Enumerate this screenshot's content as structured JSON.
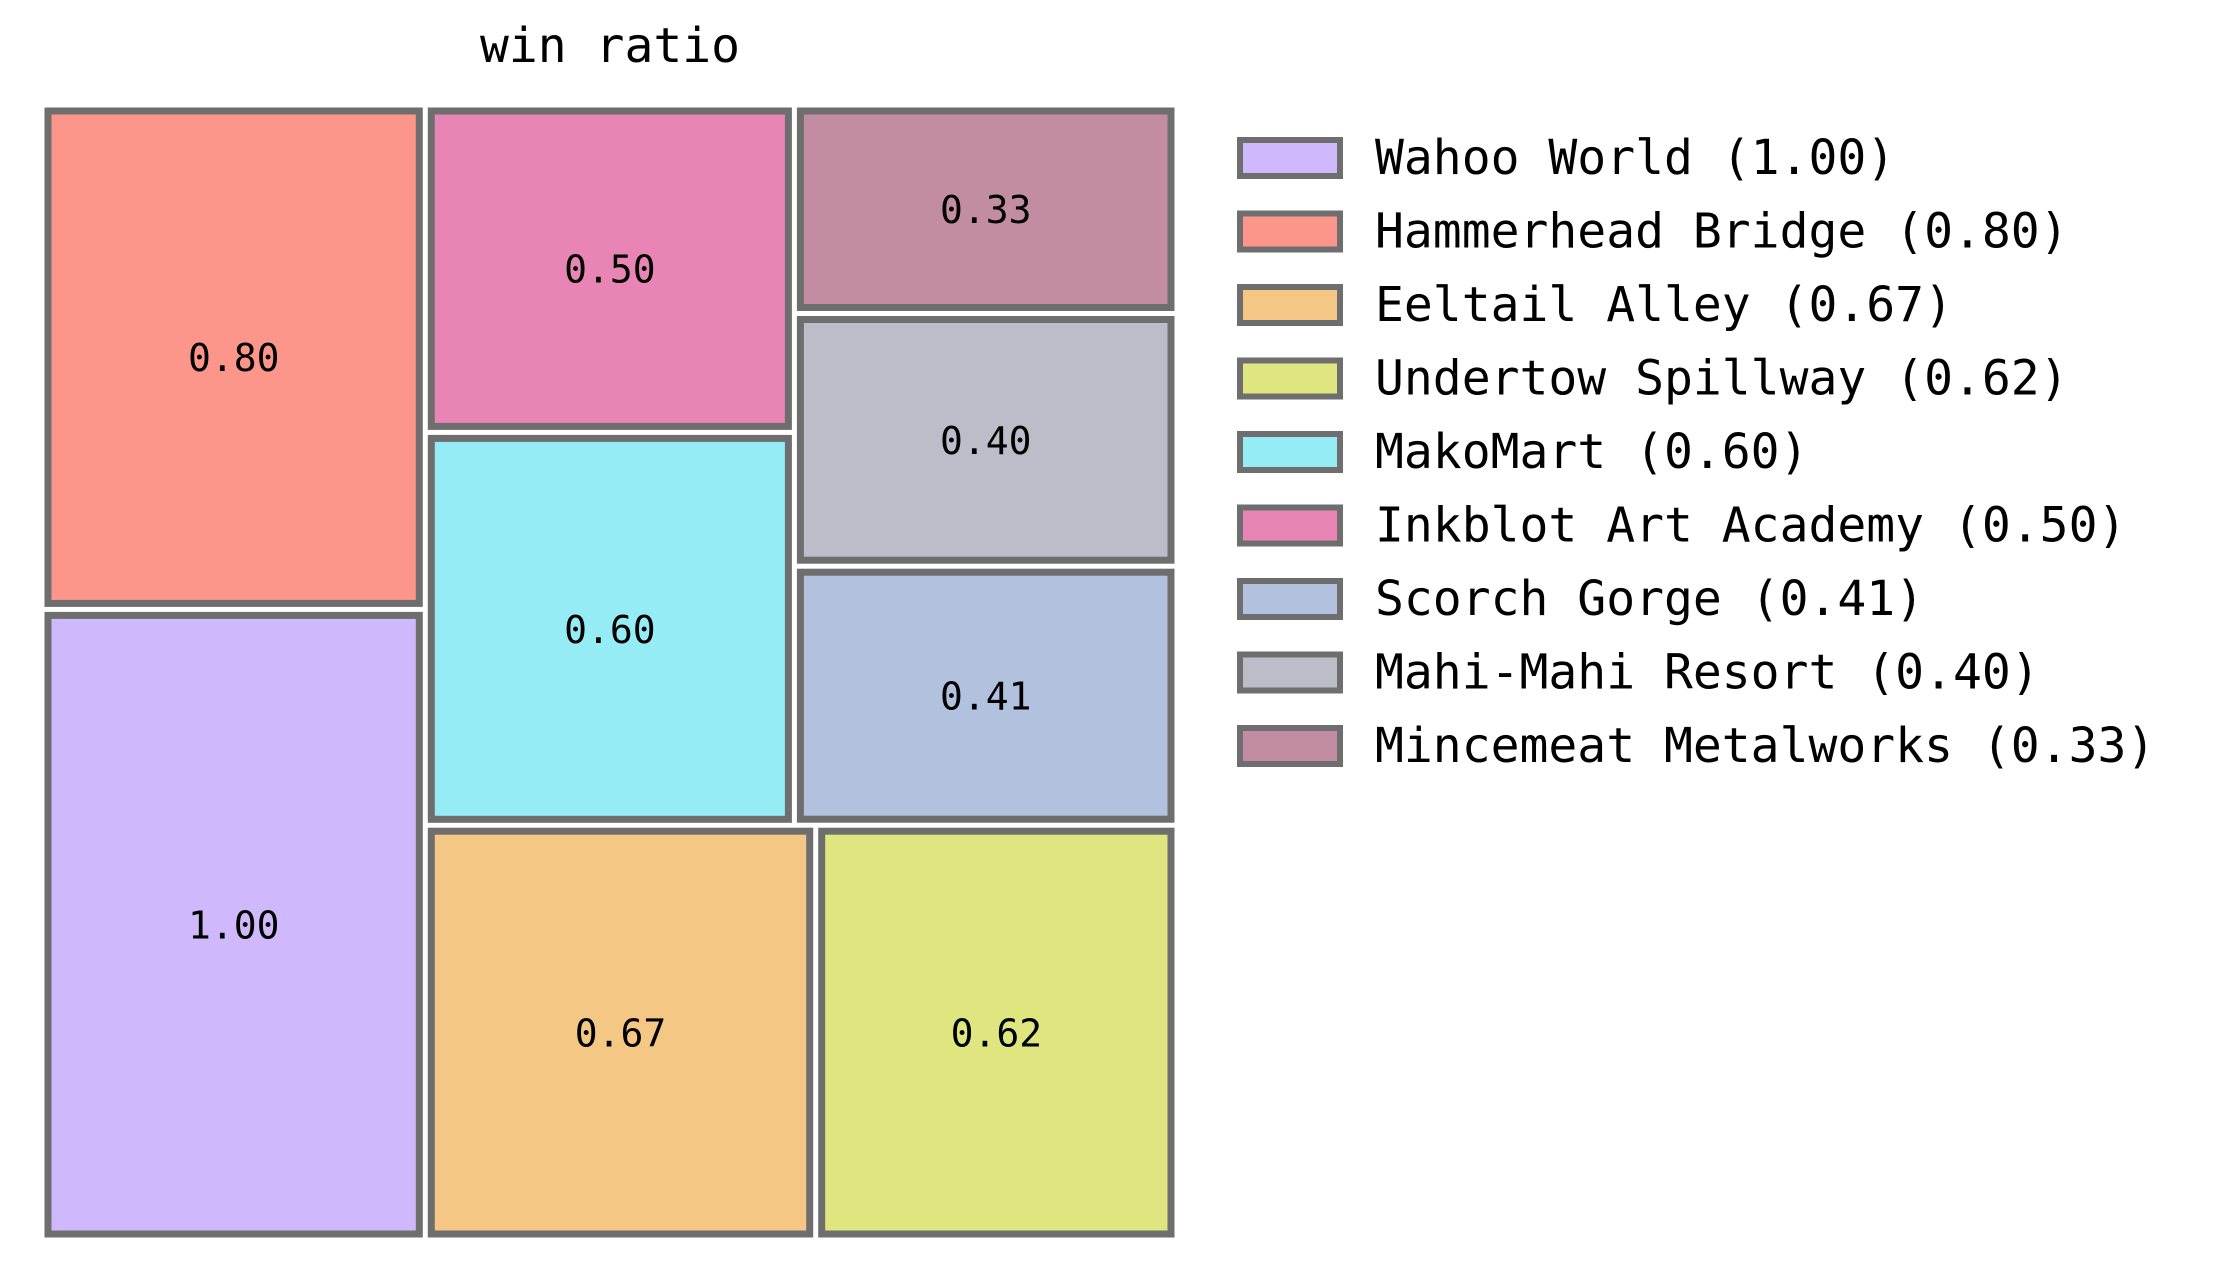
{
  "chart_data": {
    "type": "treemap",
    "title": "win ratio",
    "legend_position": "right",
    "items": [
      {
        "label": "Wahoo World",
        "value": 1.0,
        "value_text": "1.00",
        "legend_text": "Wahoo World (1.00)",
        "color": "#cfb9fc"
      },
      {
        "label": "Hammerhead Bridge",
        "value": 0.8,
        "value_text": "0.80",
        "legend_text": "Hammerhead Bridge (0.80)",
        "color": "#fd968a"
      },
      {
        "label": "Eeltail Alley",
        "value": 0.67,
        "value_text": "0.67",
        "legend_text": "Eeltail Alley (0.67)",
        "color": "#f4c784"
      },
      {
        "label": "Undertow Spillway",
        "value": 0.62,
        "value_text": "0.62",
        "legend_text": "Undertow Spillway (0.62)",
        "color": "#dfe57f"
      },
      {
        "label": "MakoMart",
        "value": 0.6,
        "value_text": "0.60",
        "legend_text": "MakoMart (0.60)",
        "color": "#95ecf4"
      },
      {
        "label": "Inkblot Art Academy",
        "value": 0.5,
        "value_text": "0.50",
        "legend_text": "Inkblot Art Academy (0.50)",
        "color": "#e985b4"
      },
      {
        "label": "Scorch Gorge",
        "value": 0.41,
        "value_text": "0.41",
        "legend_text": "Scorch Gorge (0.41)",
        "color": "#b2c1dd"
      },
      {
        "label": "Mahi-Mahi Resort",
        "value": 0.4,
        "value_text": "0.40",
        "legend_text": "Mahi-Mahi Resort (0.40)",
        "color": "#bdbcc9"
      },
      {
        "label": "Mincemeat Metalworks",
        "value": 0.33,
        "value_text": "0.33",
        "legend_text": "Mincemeat Metalworks (0.33)",
        "color": "#c28ca2"
      }
    ]
  }
}
